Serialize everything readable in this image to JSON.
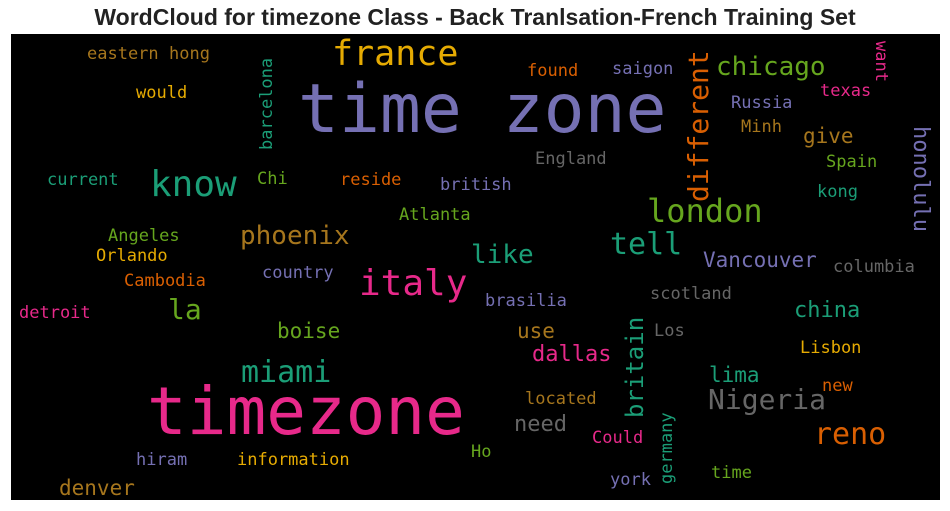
{
  "title": "WordCloud for timezone Class - Back Tranlsation-French Training Set",
  "words": [
    {
      "text": "time zone",
      "color": "#7570b3"
    },
    {
      "text": "timezone",
      "color": "#e7298a"
    },
    {
      "text": "france",
      "color": "#e6ab02"
    },
    {
      "text": "know",
      "color": "#1b9e77"
    },
    {
      "text": "italy",
      "color": "#e7298a"
    },
    {
      "text": "london",
      "color": "#66a61e"
    },
    {
      "text": "chicago",
      "color": "#66a61e"
    },
    {
      "text": "phoenix",
      "color": "#a6761d"
    },
    {
      "text": "tell",
      "color": "#1b9e77"
    },
    {
      "text": "different",
      "color": "#d95f02"
    },
    {
      "text": "miami",
      "color": "#1b9e77"
    },
    {
      "text": "Nigeria",
      "color": "#666666"
    },
    {
      "text": "reno",
      "color": "#d95f02"
    },
    {
      "text": "britain",
      "color": "#1b9e77"
    },
    {
      "text": "like",
      "color": "#1b9e77"
    },
    {
      "text": "Vancouver",
      "color": "#7570b3"
    },
    {
      "text": "honolulu",
      "color": "#7570b3"
    },
    {
      "text": "la",
      "color": "#66a61e"
    },
    {
      "text": "china",
      "color": "#1b9e77"
    },
    {
      "text": "dallas",
      "color": "#e7298a"
    },
    {
      "text": "boise",
      "color": "#66a61e"
    },
    {
      "text": "use",
      "color": "#a6761d"
    },
    {
      "text": "need",
      "color": "#666666"
    },
    {
      "text": "denver",
      "color": "#a6761d"
    },
    {
      "text": "lima",
      "color": "#1b9e77"
    },
    {
      "text": "give",
      "color": "#a6761d"
    },
    {
      "text": "eastern",
      "color": "#a6761d"
    },
    {
      "text": "hong",
      "color": "#a6761d"
    },
    {
      "text": "would",
      "color": "#e6ab02"
    },
    {
      "text": "barcelona",
      "color": "#1b9e77"
    },
    {
      "text": "found",
      "color": "#d95f02"
    },
    {
      "text": "saigon",
      "color": "#7570b3"
    },
    {
      "text": "want",
      "color": "#e7298a"
    },
    {
      "text": "texas",
      "color": "#e7298a"
    },
    {
      "text": "Russia",
      "color": "#7570b3"
    },
    {
      "text": "Minh",
      "color": "#a6761d"
    },
    {
      "text": "England",
      "color": "#666666"
    },
    {
      "text": "Spain",
      "color": "#66a61e"
    },
    {
      "text": "current",
      "color": "#1b9e77"
    },
    {
      "text": "Chi",
      "color": "#66a61e"
    },
    {
      "text": "reside",
      "color": "#d95f02"
    },
    {
      "text": "british",
      "color": "#7570b3"
    },
    {
      "text": "kong",
      "color": "#1b9e77"
    },
    {
      "text": "Atlanta",
      "color": "#66a61e"
    },
    {
      "text": "Angeles",
      "color": "#66a61e"
    },
    {
      "text": "Orlando",
      "color": "#e6ab02"
    },
    {
      "text": "country",
      "color": "#7570b3"
    },
    {
      "text": "columbia",
      "color": "#666666"
    },
    {
      "text": "Cambodia",
      "color": "#d95f02"
    },
    {
      "text": "scotland",
      "color": "#666666"
    },
    {
      "text": "detroit",
      "color": "#e7298a"
    },
    {
      "text": "brasilia",
      "color": "#7570b3"
    },
    {
      "text": "Los",
      "color": "#666666"
    },
    {
      "text": "Lisbon",
      "color": "#e6ab02"
    },
    {
      "text": "new",
      "color": "#d95f02"
    },
    {
      "text": "located",
      "color": "#a6761d"
    },
    {
      "text": "germany",
      "color": "#1b9e77"
    },
    {
      "text": "Could",
      "color": "#e7298a"
    },
    {
      "text": "Ho",
      "color": "#66a61e"
    },
    {
      "text": "hiram",
      "color": "#7570b3"
    },
    {
      "text": "information",
      "color": "#e6ab02"
    },
    {
      "text": "time",
      "color": "#66a61e"
    },
    {
      "text": "york",
      "color": "#7570b3"
    }
  ]
}
